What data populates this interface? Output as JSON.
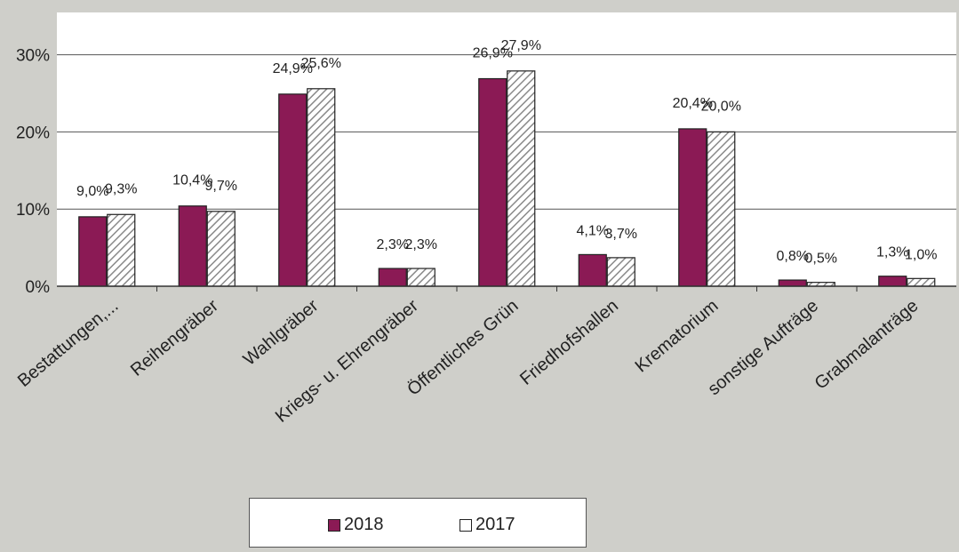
{
  "chart_data": {
    "type": "bar",
    "categories": [
      "Bestattungen,...",
      "Reihengräber",
      "Wahlgräber",
      "Kriegs- u. Ehrengräber",
      "Öffentliches Grün",
      "Friedhofshallen",
      "Krematorium",
      "sonstige Aufträge",
      "Grabmalanträge"
    ],
    "series": [
      {
        "name": "2018",
        "values": [
          9.0,
          10.4,
          24.9,
          2.3,
          26.9,
          4.1,
          20.4,
          0.8,
          1.3
        ],
        "labels": [
          "9,0%",
          "10,4%",
          "24,9%",
          "2,3%",
          "26,9%",
          "4,1%",
          "20,4%",
          "0,8%",
          "1,3%"
        ],
        "color": "#8b1a55",
        "fill": "solid"
      },
      {
        "name": "2017",
        "values": [
          9.3,
          9.7,
          25.6,
          2.3,
          27.9,
          3.7,
          20.0,
          0.5,
          1.0
        ],
        "labels": [
          "9,3%",
          "9,7%",
          "25,6%",
          "2,3%",
          "27,9%",
          "3,7%",
          "20,0%",
          "0,5%",
          "1,0%"
        ],
        "color": "#ffffff",
        "fill": "hatched"
      }
    ],
    "yticks": [
      {
        "value": 0,
        "label": "0%"
      },
      {
        "value": 10,
        "label": "10%"
      },
      {
        "value": 20,
        "label": "20%"
      },
      {
        "value": 30,
        "label": "30%"
      }
    ],
    "ylim": [
      0,
      30
    ],
    "title": "",
    "xlabel": "",
    "ylabel": "",
    "grid": true,
    "legend_position": "bottom"
  }
}
